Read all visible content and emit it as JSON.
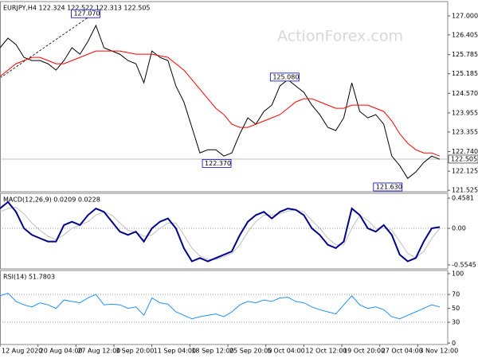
{
  "chart_data": [
    {
      "type": "line",
      "title": "EURJPY,H4 122.324 122.522 122.313 122.505",
      "watermark": "ActionForex.com",
      "x": [
        0,
        1,
        2,
        3,
        4,
        5,
        6,
        7,
        8,
        9,
        10,
        11,
        12,
        13,
        14,
        15,
        16,
        17,
        18,
        19,
        20,
        21,
        22,
        23,
        24,
        25,
        26,
        27,
        28,
        29,
        30,
        31,
        32,
        33,
        34,
        35,
        36,
        37,
        38,
        39,
        40,
        41,
        42,
        43,
        44,
        45,
        46,
        47,
        48,
        49,
        50,
        51,
        52,
        53,
        54,
        55
      ],
      "xlim": [
        0,
        56
      ],
      "ylim": [
        121.48,
        127.45
      ],
      "yticks": [
        {
          "value": 127,
          "label": "127.000"
        },
        126.405,
        125.785,
        125.185,
        {
          "value": 124.57,
          "label": "124.570"
        },
        123.955,
        123.355,
        {
          "value": 122.74,
          "label": "122.740"
        },
        122.125,
        121.525
      ],
      "current": 122.505,
      "series": [
        {
          "color": "#000000",
          "values": [
            126.0,
            126.3,
            126.1,
            125.7,
            125.6,
            125.6,
            125.5,
            125.3,
            125.6,
            126.0,
            125.8,
            126.2,
            126.7,
            126.0,
            125.9,
            125.8,
            125.6,
            125.5,
            124.9,
            125.9,
            125.7,
            125.6,
            124.8,
            124.3,
            123.5,
            122.7,
            122.8,
            122.8,
            122.6,
            122.7,
            123.3,
            123.8,
            123.6,
            124.0,
            124.2,
            124.8,
            125.0,
            124.8,
            124.6,
            124.2,
            123.9,
            123.5,
            123.4,
            123.8,
            124.9,
            124.0,
            123.8,
            123.9,
            123.6,
            122.6,
            122.3,
            121.9,
            122.1,
            122.4,
            122.6,
            122.5
          ]
        },
        {
          "color": "#ff0000",
          "values": [
            125.1,
            125.3,
            125.5,
            125.6,
            125.7,
            125.7,
            125.6,
            125.5,
            125.5,
            125.6,
            125.7,
            125.8,
            125.9,
            125.9,
            125.9,
            125.9,
            125.85,
            125.8,
            125.8,
            125.8,
            125.75,
            125.7,
            125.5,
            125.3,
            125.0,
            124.7,
            124.4,
            124.1,
            123.9,
            123.6,
            123.5,
            123.5,
            123.6,
            123.7,
            123.8,
            123.9,
            124.1,
            124.3,
            124.4,
            124.4,
            124.3,
            124.2,
            124.1,
            124.1,
            124.2,
            124.2,
            124.2,
            124.1,
            124.0,
            123.7,
            123.3,
            123.0,
            122.8,
            122.7,
            122.7,
            122.6
          ]
        }
      ],
      "annotations": [
        {
          "x": 12.5,
          "value": 127.07,
          "label": "127.070"
        },
        {
          "x": 37.4,
          "value": 125.08,
          "label": "125.080"
        },
        {
          "x": 28.9,
          "value": 122.37,
          "label": "122.370"
        },
        {
          "x": 50.3,
          "value": 121.63,
          "label": "121.630"
        }
      ]
    },
    {
      "type": "line",
      "title": "MACD(12,26,9) 0.0209 0.0228",
      "x": [
        0,
        1,
        2,
        3,
        4,
        5,
        6,
        7,
        8,
        9,
        10,
        11,
        12,
        13,
        14,
        15,
        16,
        17,
        18,
        19,
        20,
        21,
        22,
        23,
        24,
        25,
        26,
        27,
        28,
        29,
        30,
        31,
        32,
        33,
        34,
        35,
        36,
        37,
        38,
        39,
        40,
        41,
        42,
        43,
        44,
        45,
        46,
        47,
        48,
        49,
        50,
        51,
        52,
        53,
        54,
        55
      ],
      "xlim": [
        0,
        56
      ],
      "ylim": [
        -0.615,
        0.531
      ],
      "yticks": [
        0.4581,
        {
          "value": 0,
          "label": "0.00"
        },
        -0.5545
      ],
      "levels": [
        0
      ],
      "series": [
        {
          "color": "#c0c0c0",
          "values": [
            0.25,
            0.3,
            0.32,
            0.22,
            0.08,
            -0.03,
            -0.12,
            -0.17,
            -0.1,
            0.0,
            0.05,
            0.1,
            0.2,
            0.25,
            0.2,
            0.08,
            -0.03,
            -0.06,
            -0.12,
            -0.1,
            0.0,
            0.08,
            0.08,
            -0.1,
            -0.3,
            -0.42,
            -0.47,
            -0.47,
            -0.43,
            -0.38,
            -0.25,
            -0.05,
            0.1,
            0.2,
            0.2,
            0.22,
            0.26,
            0.28,
            0.25,
            0.12,
            0.0,
            -0.15,
            -0.25,
            -0.25,
            0.0,
            0.2,
            0.12,
            0.0,
            0.0,
            -0.03,
            -0.2,
            -0.38,
            -0.45,
            -0.35,
            -0.15,
            0.0
          ]
        },
        {
          "color": "#00008b",
          "values": [
            0.3,
            0.4,
            0.25,
            0.0,
            -0.1,
            -0.15,
            -0.2,
            -0.2,
            0.05,
            0.1,
            0.05,
            0.2,
            0.3,
            0.25,
            0.1,
            -0.05,
            -0.1,
            -0.05,
            -0.2,
            0.0,
            0.1,
            0.15,
            0.0,
            -0.3,
            -0.5,
            -0.45,
            -0.5,
            -0.45,
            -0.4,
            -0.35,
            -0.1,
            0.1,
            0.2,
            0.25,
            0.15,
            0.25,
            0.3,
            0.28,
            0.2,
            0.0,
            -0.1,
            -0.25,
            -0.3,
            -0.2,
            0.3,
            0.2,
            0.0,
            -0.05,
            0.05,
            -0.1,
            -0.4,
            -0.5,
            -0.45,
            -0.2,
            0.0,
            0.02
          ]
        }
      ]
    },
    {
      "type": "line",
      "title": "RSI(14) 51.7803",
      "x": [
        0,
        1,
        2,
        3,
        4,
        5,
        6,
        7,
        8,
        9,
        10,
        11,
        12,
        13,
        14,
        15,
        16,
        17,
        18,
        19,
        20,
        21,
        22,
        23,
        24,
        25,
        26,
        27,
        28,
        29,
        30,
        31,
        32,
        33,
        34,
        35,
        36,
        37,
        38,
        39,
        40,
        41,
        42,
        43,
        44,
        45,
        46,
        47,
        48,
        49,
        50,
        51,
        52,
        53,
        54,
        55
      ],
      "xlim": [
        0,
        56
      ],
      "ylim": [
        -2,
        104.5
      ],
      "yticks": [
        100,
        70,
        50,
        30,
        0
      ],
      "levels": [
        70,
        30
      ],
      "xticks": [
        {
          "value": 0,
          "label": "12 Aug 2020"
        },
        {
          "value": 4.75,
          "label": "20 Aug 04:00"
        },
        {
          "value": 9.5,
          "label": "27 Aug 12:00"
        },
        {
          "value": 14.25,
          "label": "3 Sep 20:00"
        },
        {
          "value": 19,
          "label": "11 Sep 04:00"
        },
        {
          "value": 23.75,
          "label": "18 Sep 12:00"
        },
        {
          "value": 28.5,
          "label": "25 Sep 20:00"
        },
        {
          "value": 33.25,
          "label": "5 Oct 04:00"
        },
        {
          "value": 38,
          "label": "12 Oct 12:00"
        },
        {
          "value": 42.75,
          "label": "19 Oct 20:00"
        },
        {
          "value": 47.5,
          "label": "27 Oct 04:00"
        },
        {
          "value": 52.25,
          "label": "3 Nov 12:00"
        }
      ],
      "series": [
        {
          "color": "#1e90ff",
          "values": [
            68,
            72,
            60,
            55,
            52,
            58,
            55,
            50,
            62,
            60,
            58,
            65,
            70,
            55,
            56,
            55,
            50,
            52,
            40,
            65,
            58,
            56,
            45,
            40,
            35,
            38,
            40,
            42,
            38,
            45,
            55,
            60,
            58,
            62,
            60,
            65,
            66,
            60,
            58,
            52,
            48,
            45,
            42,
            55,
            68,
            55,
            50,
            52,
            48,
            38,
            35,
            40,
            45,
            50,
            55,
            52
          ]
        }
      ]
    }
  ]
}
